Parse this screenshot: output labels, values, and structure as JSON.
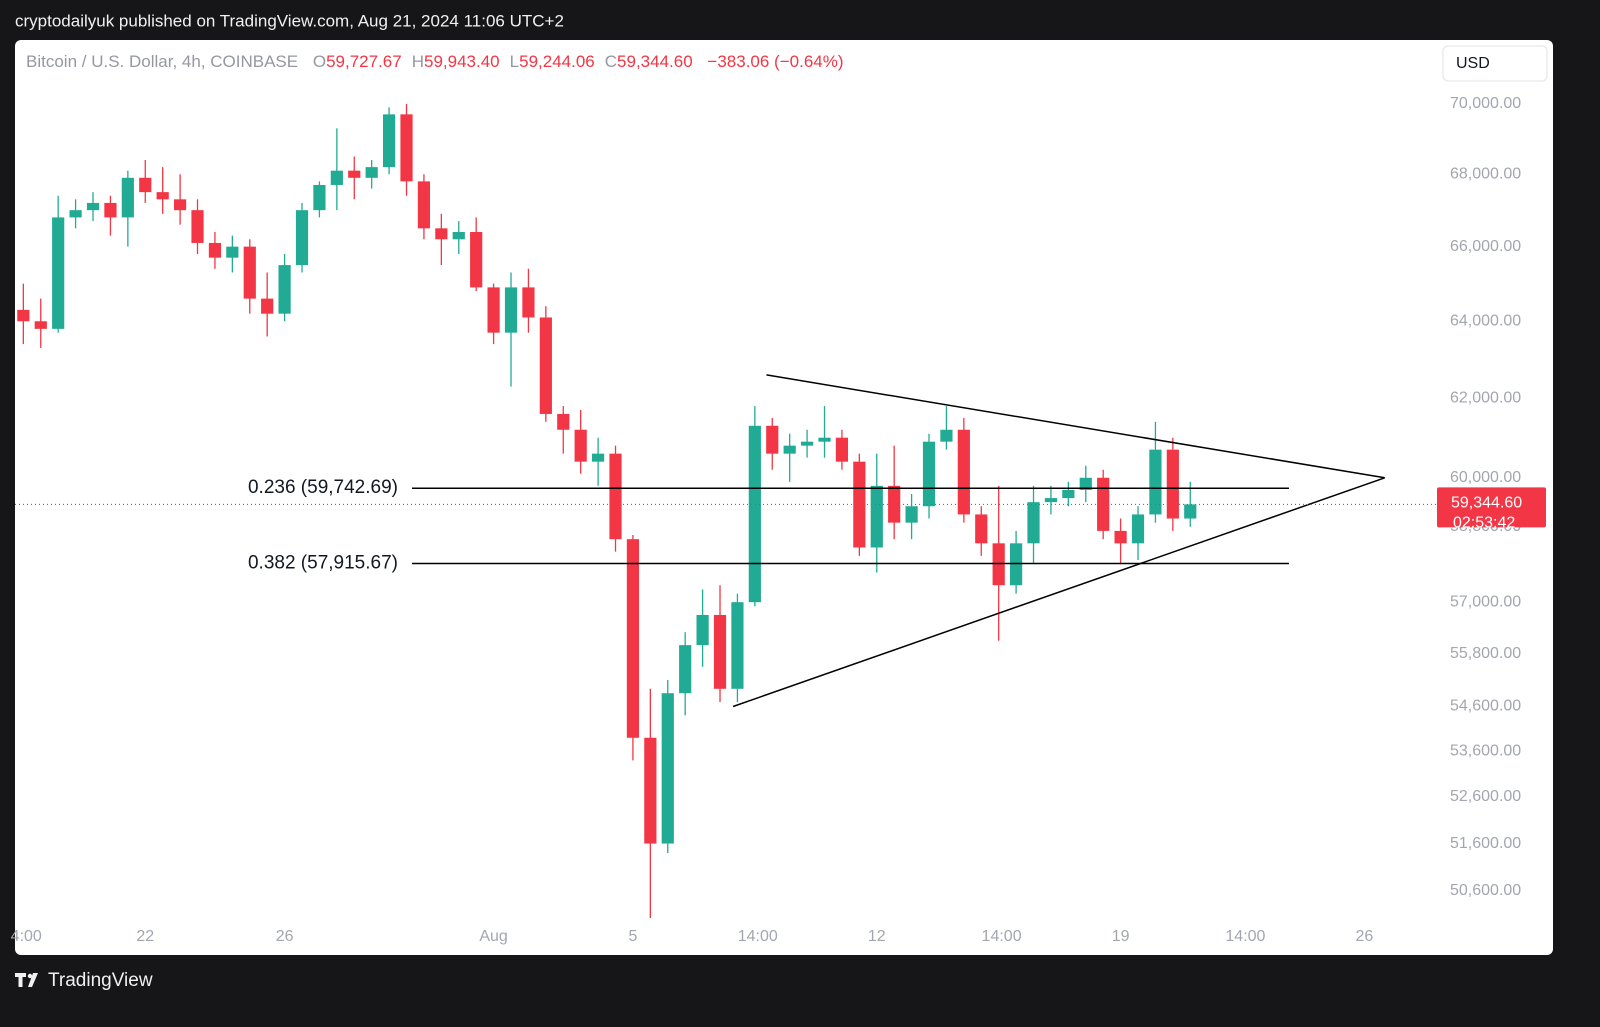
{
  "page": {
    "published": "cryptodailyuk published on TradingView.com, Aug 21, 2024 11:06 UTC+2",
    "brand": "TradingView"
  },
  "chart_data": {
    "type": "candlestick",
    "title": "Bitcoin / U.S. Dollar, 4h, COINBASE",
    "ohlc_legend": [
      {
        "key": "O",
        "value": 59727.67,
        "label": "59,727.67"
      },
      {
        "key": "H",
        "value": 59943.4,
        "label": "59,943.40"
      },
      {
        "key": "L",
        "value": 59244.06,
        "label": "59,244.06"
      },
      {
        "key": "C",
        "value": 59344.6,
        "label": "59,344.60"
      }
    ],
    "change": "−383.06 (−0.64%)",
    "currency": "USD",
    "log_scale": true,
    "grid": false,
    "up_color": "#22ab94",
    "down_color": "#f23645",
    "x": [
      "2024-07-18T12:00",
      "2024-07-19T00:00",
      "2024-07-19T12:00",
      "2024-07-20T00:00",
      "2024-07-20T12:00",
      "2024-07-21T00:00",
      "2024-07-21T12:00",
      "2024-07-22T00:00",
      "2024-07-22T12:00",
      "2024-07-23T00:00",
      "2024-07-23T12:00",
      "2024-07-24T00:00",
      "2024-07-24T12:00",
      "2024-07-25T00:00",
      "2024-07-25T12:00",
      "2024-07-26T00:00",
      "2024-07-26T12:00",
      "2024-07-27T00:00",
      "2024-07-27T12:00",
      "2024-07-28T00:00",
      "2024-07-28T12:00",
      "2024-07-29T00:00",
      "2024-07-29T12:00",
      "2024-07-30T00:00",
      "2024-07-30T12:00",
      "2024-07-31T00:00",
      "2024-07-31T12:00",
      "2024-08-01T00:00",
      "2024-08-01T12:00",
      "2024-08-02T00:00",
      "2024-08-02T12:00",
      "2024-08-03T00:00",
      "2024-08-03T12:00",
      "2024-08-04T00:00",
      "2024-08-04T12:00",
      "2024-08-05T00:00",
      "2024-08-05T12:00",
      "2024-08-06T00:00",
      "2024-08-06T12:00",
      "2024-08-07T00:00",
      "2024-08-07T12:00",
      "2024-08-08T00:00",
      "2024-08-08T12:00",
      "2024-08-09T00:00",
      "2024-08-09T12:00",
      "2024-08-10T00:00",
      "2024-08-10T12:00",
      "2024-08-11T00:00",
      "2024-08-11T12:00",
      "2024-08-12T00:00",
      "2024-08-12T12:00",
      "2024-08-13T00:00",
      "2024-08-13T12:00",
      "2024-08-14T00:00",
      "2024-08-14T12:00",
      "2024-08-15T00:00",
      "2024-08-15T12:00",
      "2024-08-16T00:00",
      "2024-08-16T12:00",
      "2024-08-17T00:00",
      "2024-08-17T12:00",
      "2024-08-18T00:00",
      "2024-08-18T12:00",
      "2024-08-19T00:00",
      "2024-08-19T12:00",
      "2024-08-20T00:00",
      "2024-08-20T12:00",
      "2024-08-21T00:00"
    ],
    "open": [
      64300,
      64000,
      63800,
      66800,
      67000,
      67200,
      66800,
      67900,
      67500,
      67300,
      67000,
      66100,
      65700,
      66000,
      64600,
      64200,
      65500,
      67000,
      67700,
      68100,
      67900,
      68200,
      69700,
      67800,
      66500,
      66200,
      66400,
      64900,
      63700,
      64900,
      64100,
      61600,
      61200,
      60400,
      60600,
      58500,
      53900,
      51600,
      54900,
      56000,
      56700,
      55000,
      57000,
      61300,
      60600,
      60800,
      60900,
      61000,
      60400,
      58300,
      59800,
      58900,
      59300,
      60900,
      61200,
      59100,
      58400,
      57400,
      58400,
      59400,
      59500,
      59700,
      60000,
      58700,
      58400,
      59100,
      60700,
      59000
    ],
    "high": [
      65000,
      64600,
      67400,
      67300,
      67500,
      67400,
      68100,
      68400,
      68200,
      68000,
      67300,
      66400,
      66300,
      66200,
      65300,
      65800,
      67200,
      67800,
      69300,
      68500,
      68400,
      69900,
      70000,
      68000,
      66900,
      66700,
      66800,
      65000,
      65300,
      65400,
      64400,
      61800,
      61700,
      61000,
      60800,
      58600,
      55000,
      55200,
      56300,
      57300,
      57400,
      57200,
      61800,
      61500,
      61100,
      61200,
      61800,
      61200,
      60600,
      60600,
      60800,
      59600,
      61100,
      61800,
      61500,
      59300,
      59800,
      58700,
      59800,
      59800,
      59900,
      60300,
      60200,
      59000,
      59300,
      61400,
      61000,
      59900
    ],
    "low": [
      63400,
      63300,
      63700,
      66500,
      66700,
      66300,
      66000,
      67200,
      66900,
      66600,
      65800,
      65400,
      65300,
      64200,
      63600,
      64000,
      65300,
      66800,
      67000,
      67300,
      67600,
      68000,
      67400,
      66200,
      65500,
      65800,
      64800,
      63400,
      62300,
      63700,
      61400,
      60600,
      60100,
      59800,
      58200,
      53400,
      49500,
      51400,
      54400,
      55500,
      54700,
      54700,
      56900,
      60200,
      59900,
      60500,
      60500,
      60200,
      58100,
      57700,
      58500,
      58500,
      59000,
      60700,
      58900,
      58100,
      56100,
      57200,
      57900,
      59100,
      59300,
      59400,
      58500,
      57900,
      58000,
      58900,
      58700,
      58800
    ],
    "close": [
      64000,
      63800,
      66800,
      67000,
      67200,
      66800,
      67900,
      67500,
      67300,
      67000,
      66100,
      65700,
      66000,
      64600,
      64200,
      65500,
      67000,
      67700,
      68100,
      67900,
      68200,
      69700,
      67800,
      66500,
      66200,
      66400,
      64900,
      63700,
      64900,
      64100,
      61600,
      61200,
      60400,
      60600,
      58500,
      53900,
      51600,
      54900,
      56000,
      56700,
      55000,
      57000,
      61300,
      60600,
      60800,
      60900,
      61000,
      60400,
      58300,
      59800,
      58900,
      59300,
      60900,
      61200,
      59100,
      58400,
      57400,
      58400,
      59400,
      59500,
      59700,
      60000,
      58700,
      58400,
      59100,
      60700,
      59000,
      59345
    ],
    "xlim": [
      "2024-07-18T06:15",
      "2024-08-28T02:00"
    ],
    "ylim": [
      50040,
      71870
    ],
    "xticks": [
      {
        "value": "2024-07-18T14:00",
        "label": "4:00"
      },
      {
        "value": "2024-07-22T00:00",
        "label": "22"
      },
      {
        "value": "2024-07-26T00:00",
        "label": "26"
      },
      {
        "value": "2024-08-01T00:00",
        "label": "Aug"
      },
      {
        "value": "2024-08-05T00:00",
        "label": "5"
      },
      {
        "value": "2024-08-08T14:00",
        "label": "14:00"
      },
      {
        "value": "2024-08-12T00:00",
        "label": "12"
      },
      {
        "value": "2024-08-15T14:00",
        "label": "14:00"
      },
      {
        "value": "2024-08-19T00:00",
        "label": "19"
      },
      {
        "value": "2024-08-22T14:00",
        "label": "14:00"
      },
      {
        "value": "2024-08-26T00:00",
        "label": "26"
      }
    ],
    "yticks": [
      {
        "value": 70000,
        "label": "70,000.00"
      },
      {
        "value": 68000,
        "label": "68,000.00"
      },
      {
        "value": 66000,
        "label": "66,000.00"
      },
      {
        "value": 64000,
        "label": "64,000.00"
      },
      {
        "value": 62000,
        "label": "62,000.00"
      },
      {
        "value": 60000,
        "label": "60,000.00"
      },
      {
        "value": 58800,
        "label": "58,800.00"
      },
      {
        "value": 57000,
        "label": "57,000.00"
      },
      {
        "value": 55800,
        "label": "55,800.00"
      },
      {
        "value": 54600,
        "label": "54,600.00"
      },
      {
        "value": 53600,
        "label": "53,600.00"
      },
      {
        "value": 52600,
        "label": "52,600.00"
      },
      {
        "value": 51600,
        "label": "51,600.00"
      },
      {
        "value": 50600,
        "label": "50,600.00"
      }
    ],
    "fib_levels": [
      {
        "value": 59742.69,
        "label": "0.236 (59,742.69)"
      },
      {
        "value": 57915.67,
        "label": "0.382 (57,915.67)"
      }
    ],
    "trendlines": [
      {
        "points": [
          [
            "2024-08-08T20:00",
            62600
          ],
          [
            "2024-08-26T14:00",
            60000
          ]
        ]
      },
      {
        "points": [
          [
            "2024-08-07T21:00",
            54600
          ],
          [
            "2024-08-26T14:00",
            60000
          ]
        ]
      }
    ],
    "last_price": {
      "value": 59344.6,
      "label": "59,344.60"
    },
    "countdown": "02:53:42"
  }
}
